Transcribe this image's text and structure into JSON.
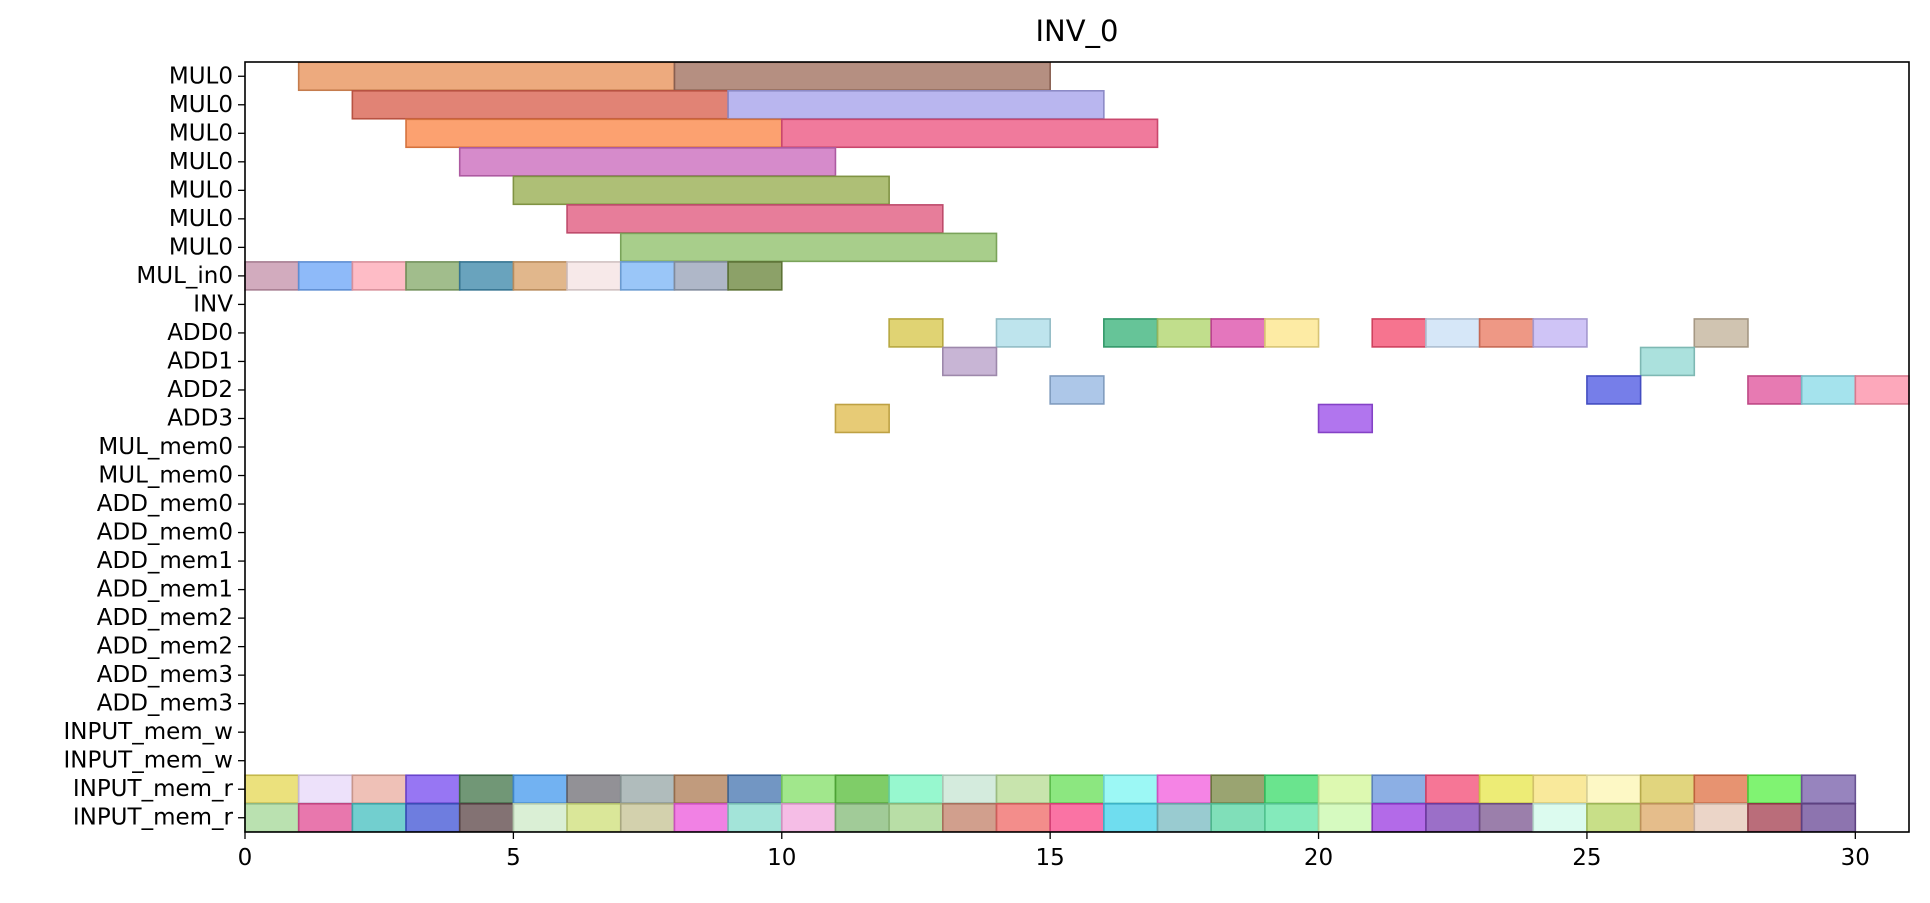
{
  "chart_data": {
    "type": "gantt",
    "title": "INV_0",
    "xlabel": "",
    "ylabel": "",
    "xlim": [
      0,
      31
    ],
    "xticks": [
      0,
      5,
      10,
      15,
      20,
      25,
      30
    ],
    "xtick_labels": [
      "0",
      "5",
      "10",
      "15",
      "20",
      "25",
      "30"
    ],
    "grid": false,
    "rows": [
      "MUL0",
      "MUL0",
      "MUL0",
      "MUL0",
      "MUL0",
      "MUL0",
      "MUL0",
      "MUL_in0",
      "INV",
      "ADD0",
      "ADD1",
      "ADD2",
      "ADD3",
      "MUL_mem0",
      "MUL_mem0",
      "ADD_mem0",
      "ADD_mem0",
      "ADD_mem1",
      "ADD_mem1",
      "ADD_mem2",
      "ADD_mem2",
      "ADD_mem3",
      "ADD_mem3",
      "INPUT_mem_w",
      "INPUT_mem_w",
      "INPUT_mem_r",
      "INPUT_mem_r"
    ],
    "tasks": [
      {
        "row": 0,
        "start": 1,
        "end": 8,
        "color": "#e8925a"
      },
      {
        "row": 0,
        "start": 8,
        "end": 15,
        "color": "#a0705e"
      },
      {
        "row": 1,
        "start": 2,
        "end": 9,
        "color": "#d9604e"
      },
      {
        "row": 1,
        "start": 9,
        "end": 16,
        "color": "#a5a2ea"
      },
      {
        "row": 2,
        "start": 3,
        "end": 10,
        "color": "#fb8648"
      },
      {
        "row": 2,
        "start": 10,
        "end": 17,
        "color": "#ec5480"
      },
      {
        "row": 3,
        "start": 4,
        "end": 11,
        "color": "#cb6abd"
      },
      {
        "row": 4,
        "start": 5,
        "end": 12,
        "color": "#97ad4f"
      },
      {
        "row": 5,
        "start": 6,
        "end": 13,
        "color": "#e0587e"
      },
      {
        "row": 6,
        "start": 7,
        "end": 14,
        "color": "#8fc06a"
      },
      {
        "row": 7,
        "start": 0,
        "end": 1,
        "color": "#c593ac"
      },
      {
        "row": 7,
        "start": 1,
        "end": 2,
        "color": "#6ea6f7"
      },
      {
        "row": 7,
        "start": 2,
        "end": 3,
        "color": "#fea9b6"
      },
      {
        "row": 7,
        "start": 3,
        "end": 4,
        "color": "#87ab6c"
      },
      {
        "row": 7,
        "start": 4,
        "end": 5,
        "color": "#3f89aa"
      },
      {
        "row": 7,
        "start": 5,
        "end": 6,
        "color": "#d9a36c"
      },
      {
        "row": 7,
        "start": 6,
        "end": 7,
        "color": "#f5e3e3"
      },
      {
        "row": 7,
        "start": 7,
        "end": 8,
        "color": "#7db6f6"
      },
      {
        "row": 7,
        "start": 8,
        "end": 9,
        "color": "#98a3b8"
      },
      {
        "row": 7,
        "start": 9,
        "end": 10,
        "color": "#6c863e"
      },
      {
        "row": 9,
        "start": 12,
        "end": 13,
        "color": "#d7c64c"
      },
      {
        "row": 9,
        "start": 14,
        "end": 15,
        "color": "#acdde8"
      },
      {
        "row": 9,
        "start": 16,
        "end": 17,
        "color": "#3bb37b"
      },
      {
        "row": 9,
        "start": 17,
        "end": 18,
        "color": "#b0d56c"
      },
      {
        "row": 9,
        "start": 18,
        "end": 19,
        "color": "#dc4fab"
      },
      {
        "row": 9,
        "start": 19,
        "end": 20,
        "color": "#fde68b"
      },
      {
        "row": 9,
        "start": 21,
        "end": 22,
        "color": "#f44d6f"
      },
      {
        "row": 9,
        "start": 22,
        "end": 23,
        "color": "#cbe0f6"
      },
      {
        "row": 9,
        "start": 23,
        "end": 24,
        "color": "#e97b63"
      },
      {
        "row": 9,
        "start": 24,
        "end": 25,
        "color": "#c2b3f4"
      },
      {
        "row": 9,
        "start": 27,
        "end": 28,
        "color": "#c3b39b"
      },
      {
        "row": 10,
        "start": 13,
        "end": 14,
        "color": "#b9a0c9"
      },
      {
        "row": 10,
        "start": 26,
        "end": 27,
        "color": "#94d8d3"
      },
      {
        "row": 11,
        "start": 15,
        "end": 16,
        "color": "#96b7e1"
      },
      {
        "row": 11,
        "start": 25,
        "end": 26,
        "color": "#4f5ae3"
      },
      {
        "row": 11,
        "start": 28,
        "end": 29,
        "color": "#e0559c"
      },
      {
        "row": 11,
        "start": 29,
        "end": 30,
        "color": "#8cdbe8"
      },
      {
        "row": 11,
        "start": 30,
        "end": 31,
        "color": "#fd90a8"
      },
      {
        "row": 12,
        "start": 11,
        "end": 12,
        "color": "#e0bd4f"
      },
      {
        "row": 12,
        "start": 20,
        "end": 21,
        "color": "#9b4ee9"
      },
      {
        "row": 25,
        "start": 0,
        "end": 1,
        "color": "#e6d858"
      },
      {
        "row": 25,
        "start": 1,
        "end": 2,
        "color": "#e8d8f8"
      },
      {
        "row": 25,
        "start": 2,
        "end": 3,
        "color": "#ebb0a3"
      },
      {
        "row": 25,
        "start": 3,
        "end": 4,
        "color": "#7a50f0"
      },
      {
        "row": 25,
        "start": 4,
        "end": 5,
        "color": "#497a50"
      },
      {
        "row": 25,
        "start": 5,
        "end": 6,
        "color": "#4a9cee"
      },
      {
        "row": 25,
        "start": 6,
        "end": 7,
        "color": "#737279"
      },
      {
        "row": 25,
        "start": 7,
        "end": 8,
        "color": "#9aa9a9"
      },
      {
        "row": 25,
        "start": 8,
        "end": 9,
        "color": "#b07f58"
      },
      {
        "row": 25,
        "start": 9,
        "end": 10,
        "color": "#4a78b2"
      },
      {
        "row": 25,
        "start": 10,
        "end": 11,
        "color": "#86e06c"
      },
      {
        "row": 25,
        "start": 11,
        "end": 12,
        "color": "#5bbf3e"
      },
      {
        "row": 25,
        "start": 12,
        "end": 13,
        "color": "#7af6c2"
      },
      {
        "row": 25,
        "start": 13,
        "end": 14,
        "color": "#c8e6d4"
      },
      {
        "row": 25,
        "start": 14,
        "end": 15,
        "color": "#b8dc96"
      },
      {
        "row": 25,
        "start": 15,
        "end": 16,
        "color": "#6ce05c"
      },
      {
        "row": 25,
        "start": 16,
        "end": 17,
        "color": "#80f6f2"
      },
      {
        "row": 25,
        "start": 17,
        "end": 18,
        "color": "#f261de"
      },
      {
        "row": 25,
        "start": 18,
        "end": 19,
        "color": "#7d8b49"
      },
      {
        "row": 25,
        "start": 19,
        "end": 20,
        "color": "#40dc6e"
      },
      {
        "row": 25,
        "start": 20,
        "end": 21,
        "color": "#d4f79b"
      },
      {
        "row": 25,
        "start": 21,
        "end": 22,
        "color": "#6c98dc"
      },
      {
        "row": 25,
        "start": 22,
        "end": 23,
        "color": "#f44f79"
      },
      {
        "row": 25,
        "start": 23,
        "end": 24,
        "color": "#e8e74f"
      },
      {
        "row": 25,
        "start": 24,
        "end": 25,
        "color": "#f7e37f"
      },
      {
        "row": 25,
        "start": 25,
        "end": 26,
        "color": "#fdf6b5"
      },
      {
        "row": 25,
        "start": 26,
        "end": 27,
        "color": "#d9c95a"
      },
      {
        "row": 25,
        "start": 27,
        "end": 28,
        "color": "#e07449"
      },
      {
        "row": 25,
        "start": 28,
        "end": 29,
        "color": "#5cf04a"
      },
      {
        "row": 25,
        "start": 29,
        "end": 30,
        "color": "#7a62ac"
      },
      {
        "row": 26,
        "start": 0,
        "end": 1,
        "color": "#a6d99a"
      },
      {
        "row": 26,
        "start": 1,
        "end": 2,
        "color": "#e25196"
      },
      {
        "row": 26,
        "start": 2,
        "end": 3,
        "color": "#4ac1c2"
      },
      {
        "row": 26,
        "start": 3,
        "end": 4,
        "color": "#4559d6"
      },
      {
        "row": 26,
        "start": 4,
        "end": 5,
        "color": "#604a4b"
      },
      {
        "row": 26,
        "start": 5,
        "end": 6,
        "color": "#cfeac9"
      },
      {
        "row": 26,
        "start": 6,
        "end": 7,
        "color": "#cfe07c"
      },
      {
        "row": 26,
        "start": 7,
        "end": 8,
        "color": "#c6c496"
      },
      {
        "row": 26,
        "start": 8,
        "end": 9,
        "color": "#ed5edc"
      },
      {
        "row": 26,
        "start": 9,
        "end": 10,
        "color": "#89dcce"
      },
      {
        "row": 26,
        "start": 10,
        "end": 11,
        "color": "#f2abdf"
      },
      {
        "row": 26,
        "start": 11,
        "end": 12,
        "color": "#87bd7b"
      },
      {
        "row": 26,
        "start": 12,
        "end": 13,
        "color": "#a4d58d"
      },
      {
        "row": 26,
        "start": 13,
        "end": 14,
        "color": "#c4846d"
      },
      {
        "row": 26,
        "start": 14,
        "end": 15,
        "color": "#f06d6a"
      },
      {
        "row": 26,
        "start": 15,
        "end": 16,
        "color": "#f94b8b"
      },
      {
        "row": 26,
        "start": 16,
        "end": 17,
        "color": "#47d3ea"
      },
      {
        "row": 26,
        "start": 17,
        "end": 18,
        "color": "#7cbcc3"
      },
      {
        "row": 26,
        "start": 18,
        "end": 19,
        "color": "#5cd6a5"
      },
      {
        "row": 26,
        "start": 19,
        "end": 20,
        "color": "#62e4a8"
      },
      {
        "row": 26,
        "start": 20,
        "end": 21,
        "color": "#cbf8ae"
      },
      {
        "row": 26,
        "start": 21,
        "end": 22,
        "color": "#9e40e2"
      },
      {
        "row": 26,
        "start": 22,
        "end": 23,
        "color": "#7f46b9"
      },
      {
        "row": 26,
        "start": 23,
        "end": 24,
        "color": "#7f5b93"
      },
      {
        "row": 26,
        "start": 24,
        "end": 25,
        "color": "#d2faeb"
      },
      {
        "row": 26,
        "start": 25,
        "end": 26,
        "color": "#b9d666"
      },
      {
        "row": 26,
        "start": 26,
        "end": 27,
        "color": "#deaa6a"
      },
      {
        "row": 26,
        "start": 27,
        "end": 28,
        "color": "#e6c9b8"
      },
      {
        "row": 26,
        "start": 28,
        "end": 29,
        "color": "#a74454"
      },
      {
        "row": 26,
        "start": 29,
        "end": 30,
        "color": "#6d4d98"
      }
    ]
  }
}
